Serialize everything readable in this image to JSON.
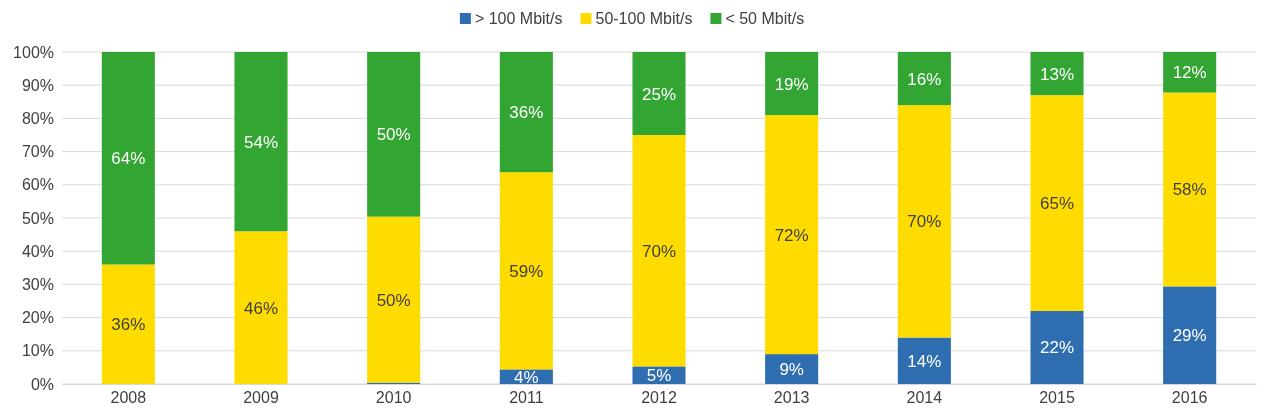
{
  "chart_data": {
    "type": "bar",
    "stacked": true,
    "categories": [
      "2008",
      "2009",
      "2010",
      "2011",
      "2012",
      "2013",
      "2014",
      "2015",
      "2016"
    ],
    "series": [
      {
        "name": "> 100 Mbit/s",
        "color": "#2e6eb0",
        "values": [
          0,
          0,
          0.4,
          4.4,
          5.3,
          9,
          14,
          22,
          29.4
        ],
        "value_labels": [
          null,
          null,
          null,
          "4%",
          "5%",
          "9%",
          "14%",
          "22%",
          "29%"
        ]
      },
      {
        "name": "50-100 Mbit/s",
        "color": "#ffdc00",
        "values": [
          36,
          46,
          50,
          59.4,
          69.7,
          72,
          70,
          65,
          58.4
        ],
        "value_labels": [
          "36%",
          "46%",
          "50%",
          "59%",
          "70%",
          "72%",
          "70%",
          "65%",
          "58%"
        ]
      },
      {
        "name": "< 50 Mbit/s",
        "color": "#33a532",
        "values": [
          64,
          54,
          49.6,
          36.2,
          25,
          19,
          16,
          13,
          12.2
        ],
        "value_labels": [
          "64%",
          "54%",
          "50%",
          "36%",
          "25%",
          "19%",
          "16%",
          "13%",
          "12%"
        ]
      }
    ],
    "ylim": [
      0,
      100
    ],
    "yticks": [
      {
        "value": 0,
        "label": "0%"
      },
      {
        "value": 10,
        "label": "10%"
      },
      {
        "value": 20,
        "label": "20%"
      },
      {
        "value": 30,
        "label": "30%"
      },
      {
        "value": 40,
        "label": "40%"
      },
      {
        "value": 50,
        "label": "50%"
      },
      {
        "value": 60,
        "label": "60%"
      },
      {
        "value": 70,
        "label": "70%"
      },
      {
        "value": 80,
        "label": "80%"
      },
      {
        "value": 90,
        "label": "90%"
      },
      {
        "value": 100,
        "label": "100%"
      }
    ],
    "grid": "y",
    "legend": "top"
  }
}
